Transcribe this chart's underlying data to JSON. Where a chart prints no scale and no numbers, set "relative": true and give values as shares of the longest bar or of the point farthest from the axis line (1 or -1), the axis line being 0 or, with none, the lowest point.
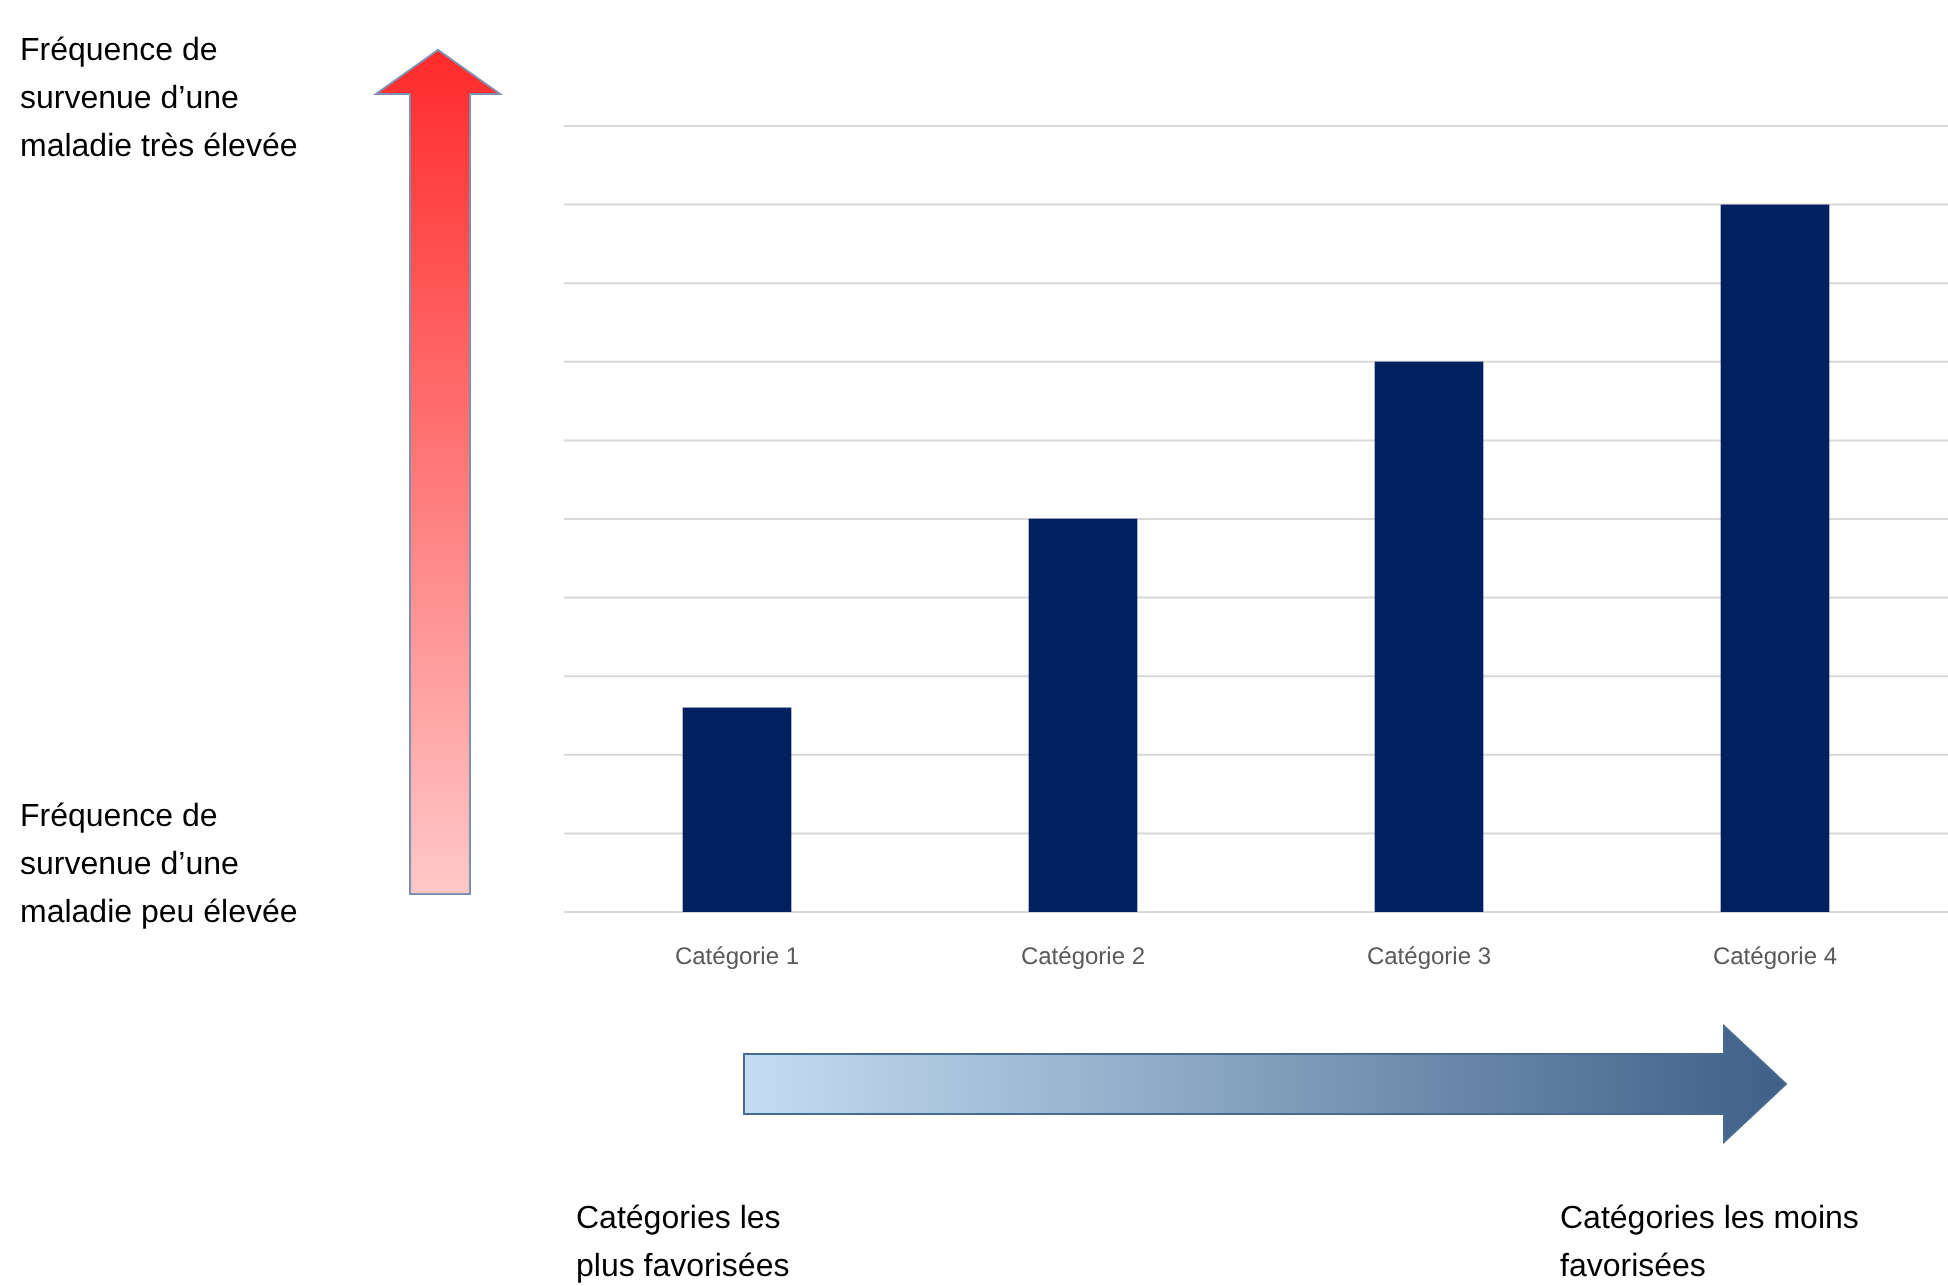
{
  "chart_data": {
    "type": "bar",
    "relative": true,
    "categories": [
      "Catégorie 1",
      "Catégorie 2",
      "Catégorie 3",
      "Catégorie 4"
    ],
    "values": [
      0.289,
      0.556,
      0.778,
      1
    ],
    "color": "#002060",
    "grid": "y",
    "annotations": [
      "Fréquence de survenue d’une maladie très élevée",
      "Fréquence de survenue d’une maladie peu élevée",
      "Catégories les plus favorisées",
      "Catégories les moins favorisées"
    ]
  }
}
